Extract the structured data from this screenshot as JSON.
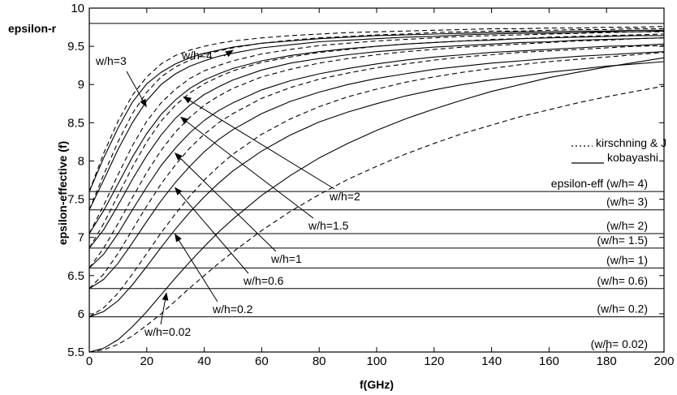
{
  "chart_data": {
    "type": "line",
    "title": "",
    "xlabel": "f(GHz)",
    "ylabel": "epsilon-effective (f)",
    "xlim": [
      0,
      200
    ],
    "ylim": [
      5.5,
      10
    ],
    "xticks": [
      0,
      20,
      40,
      60,
      80,
      100,
      120,
      140,
      160,
      180,
      200
    ],
    "yticks": [
      5.5,
      6,
      6.5,
      7,
      7.5,
      8,
      8.5,
      9,
      9.5,
      10
    ],
    "grid": false,
    "epsilon_r": 9.8,
    "epsilon_r_label": "epsilon-r",
    "legend": {
      "placement": "right",
      "entries": [
        {
          "label": "kirschning & J",
          "style": "dashed"
        },
        {
          "label": "kobayashi",
          "style": "solid"
        }
      ]
    },
    "static_levels": [
      {
        "label": "epsilon-eff (w/h= 4)",
        "value": 7.6
      },
      {
        "label": "(w/h= 3)",
        "value": 7.36
      },
      {
        "label": "(w/h= 2)",
        "value": 7.05
      },
      {
        "label": "(w/h= 1.5)",
        "value": 6.86
      },
      {
        "label": "(w/h= 1)",
        "value": 6.6
      },
      {
        "label": "(w/h= 0.6)",
        "value": 6.33
      },
      {
        "label": "(w/h= 0.2)",
        "value": 5.96
      },
      {
        "label": "(w/h= 0.02)",
        "value": 5.5
      }
    ],
    "curve_labels": [
      {
        "label": "w/h=4",
        "target_index": 0,
        "at_x": 50
      },
      {
        "label": "w/h=3",
        "target_index": 1,
        "at_x": 19
      },
      {
        "label": "w/h=2",
        "target_index": 2,
        "at_x": 32
      },
      {
        "label": "w/h=1.5",
        "target_index": 3,
        "at_x": 31
      },
      {
        "label": "w/h=1",
        "target_index": 4,
        "at_x": 29
      },
      {
        "label": "w/h=0.6",
        "target_index": 5,
        "at_x": 29
      },
      {
        "label": "w/h=0.2",
        "target_index": 6,
        "at_x": 29
      },
      {
        "label": "w/h=0.02",
        "target_index": 7,
        "at_x": 26
      }
    ],
    "x": [
      0,
      5,
      10,
      15,
      20,
      25,
      30,
      35,
      40,
      45,
      50,
      60,
      70,
      80,
      90,
      100,
      110,
      120,
      130,
      140,
      150,
      160,
      170,
      180,
      190,
      200
    ],
    "series": [
      {
        "style": "solid",
        "group": "w/h=4",
        "values": [
          7.6,
          8.04,
          8.43,
          8.77,
          9.01,
          9.16,
          9.27,
          9.35,
          9.41,
          9.45,
          9.49,
          9.54,
          9.57,
          9.6,
          9.62,
          9.64,
          9.65,
          9.66,
          9.67,
          9.68,
          9.69,
          9.69,
          9.7,
          9.7,
          9.71,
          9.71
        ]
      },
      {
        "style": "dashed",
        "group": "w/h=4",
        "values": [
          7.6,
          8.1,
          8.52,
          8.86,
          9.1,
          9.27,
          9.38,
          9.45,
          9.5,
          9.54,
          9.57,
          9.61,
          9.64,
          9.66,
          9.68,
          9.69,
          9.7,
          9.71,
          9.72,
          9.73,
          9.73,
          9.74,
          9.74,
          9.75,
          9.75,
          9.76
        ]
      },
      {
        "style": "solid",
        "group": "w/h=3",
        "values": [
          7.36,
          7.75,
          8.15,
          8.5,
          8.79,
          9.0,
          9.14,
          9.24,
          9.31,
          9.37,
          9.41,
          9.48,
          9.52,
          9.56,
          9.58,
          9.6,
          9.62,
          9.63,
          9.65,
          9.66,
          9.67,
          9.67,
          9.68,
          9.69,
          9.69,
          9.7
        ]
      },
      {
        "style": "dashed",
        "group": "w/h=3",
        "values": [
          7.36,
          7.82,
          8.25,
          8.62,
          8.9,
          9.1,
          9.23,
          9.32,
          9.39,
          9.44,
          9.48,
          9.54,
          9.58,
          9.61,
          9.63,
          9.65,
          9.66,
          9.68,
          9.69,
          9.7,
          9.7,
          9.71,
          9.72,
          9.72,
          9.73,
          9.73
        ]
      },
      {
        "style": "solid",
        "group": "w/h=2",
        "values": [
          7.05,
          7.35,
          7.7,
          8.05,
          8.36,
          8.61,
          8.8,
          8.95,
          9.06,
          9.14,
          9.21,
          9.31,
          9.38,
          9.43,
          9.47,
          9.5,
          9.53,
          9.55,
          9.57,
          9.58,
          9.6,
          9.61,
          9.62,
          9.63,
          9.64,
          9.64
        ]
      },
      {
        "style": "dashed",
        "group": "w/h=2",
        "values": [
          7.05,
          7.42,
          7.82,
          8.2,
          8.52,
          8.76,
          8.94,
          9.08,
          9.18,
          9.25,
          9.31,
          9.4,
          9.46,
          9.51,
          9.54,
          9.57,
          9.59,
          9.61,
          9.63,
          9.64,
          9.65,
          9.66,
          9.67,
          9.68,
          9.69,
          9.69
        ]
      },
      {
        "style": "solid",
        "group": "w/h=1.5",
        "values": [
          6.86,
          7.1,
          7.42,
          7.76,
          8.07,
          8.34,
          8.56,
          8.73,
          8.87,
          8.97,
          9.06,
          9.19,
          9.28,
          9.34,
          9.39,
          9.43,
          9.46,
          9.49,
          9.51,
          9.53,
          9.55,
          9.56,
          9.58,
          9.59,
          9.6,
          9.61
        ]
      },
      {
        "style": "dashed",
        "group": "w/h=1.5",
        "values": [
          6.86,
          7.18,
          7.55,
          7.92,
          8.25,
          8.52,
          8.73,
          8.89,
          9.01,
          9.1,
          9.18,
          9.29,
          9.36,
          9.42,
          9.46,
          9.5,
          9.53,
          9.55,
          9.57,
          9.59,
          9.6,
          9.62,
          9.63,
          9.64,
          9.65,
          9.66
        ]
      },
      {
        "style": "solid",
        "group": "w/h=1",
        "values": [
          6.6,
          6.78,
          7.05,
          7.36,
          7.66,
          7.94,
          8.17,
          8.37,
          8.53,
          8.66,
          8.76,
          8.93,
          9.05,
          9.14,
          9.21,
          9.27,
          9.32,
          9.36,
          9.39,
          9.42,
          9.44,
          9.46,
          9.48,
          9.5,
          9.51,
          9.53
        ]
      },
      {
        "style": "dashed",
        "group": "w/h=1",
        "values": [
          6.6,
          6.86,
          7.18,
          7.52,
          7.85,
          8.14,
          8.38,
          8.57,
          8.73,
          8.85,
          8.95,
          9.1,
          9.2,
          9.28,
          9.34,
          9.39,
          9.43,
          9.46,
          9.49,
          9.51,
          9.53,
          9.55,
          9.57,
          9.58,
          9.6,
          9.61
        ]
      },
      {
        "style": "solid",
        "group": "w/h=0.6",
        "values": [
          6.33,
          6.45,
          6.66,
          6.93,
          7.21,
          7.48,
          7.72,
          7.93,
          8.12,
          8.28,
          8.41,
          8.62,
          8.78,
          8.9,
          9.0,
          9.08,
          9.14,
          9.2,
          9.24,
          9.28,
          9.31,
          9.34,
          9.37,
          9.39,
          9.41,
          9.43
        ]
      },
      {
        "style": "dashed",
        "group": "w/h=0.6",
        "values": [
          6.33,
          6.52,
          6.79,
          7.1,
          7.41,
          7.7,
          7.95,
          8.17,
          8.35,
          8.5,
          8.62,
          8.82,
          8.96,
          9.07,
          9.15,
          9.22,
          9.27,
          9.32,
          9.36,
          9.39,
          9.42,
          9.44,
          9.46,
          9.48,
          9.5,
          9.51
        ]
      },
      {
        "style": "solid",
        "group": "w/h=0.2",
        "values": [
          5.96,
          6.03,
          6.17,
          6.38,
          6.62,
          6.87,
          7.11,
          7.33,
          7.53,
          7.71,
          7.87,
          8.13,
          8.34,
          8.51,
          8.64,
          8.75,
          8.85,
          8.93,
          9.0,
          9.06,
          9.11,
          9.16,
          9.2,
          9.24,
          9.27,
          9.3
        ]
      },
      {
        "style": "dashed",
        "group": "w/h=0.2",
        "values": [
          5.96,
          6.08,
          6.27,
          6.52,
          6.79,
          7.06,
          7.31,
          7.54,
          7.75,
          7.93,
          8.09,
          8.35,
          8.55,
          8.71,
          8.84,
          8.94,
          9.03,
          9.1,
          9.16,
          9.21,
          9.26,
          9.3,
          9.33,
          9.36,
          9.39,
          9.42
        ]
      },
      {
        "style": "solid",
        "group": "w/h=0.02",
        "values": [
          5.5,
          5.55,
          5.66,
          5.83,
          6.03,
          6.25,
          6.47,
          6.68,
          6.88,
          7.07,
          7.24,
          7.55,
          7.81,
          8.04,
          8.23,
          8.4,
          8.55,
          8.68,
          8.8,
          8.91,
          9.0,
          9.09,
          9.16,
          9.23,
          9.29,
          9.35
        ]
      },
      {
        "style": "dashed",
        "group": "w/h=0.02",
        "values": [
          5.5,
          5.53,
          5.6,
          5.71,
          5.85,
          6.0,
          6.17,
          6.34,
          6.5,
          6.66,
          6.81,
          7.09,
          7.34,
          7.56,
          7.76,
          7.93,
          8.09,
          8.23,
          8.36,
          8.47,
          8.58,
          8.67,
          8.76,
          8.84,
          8.91,
          8.98
        ]
      }
    ]
  }
}
